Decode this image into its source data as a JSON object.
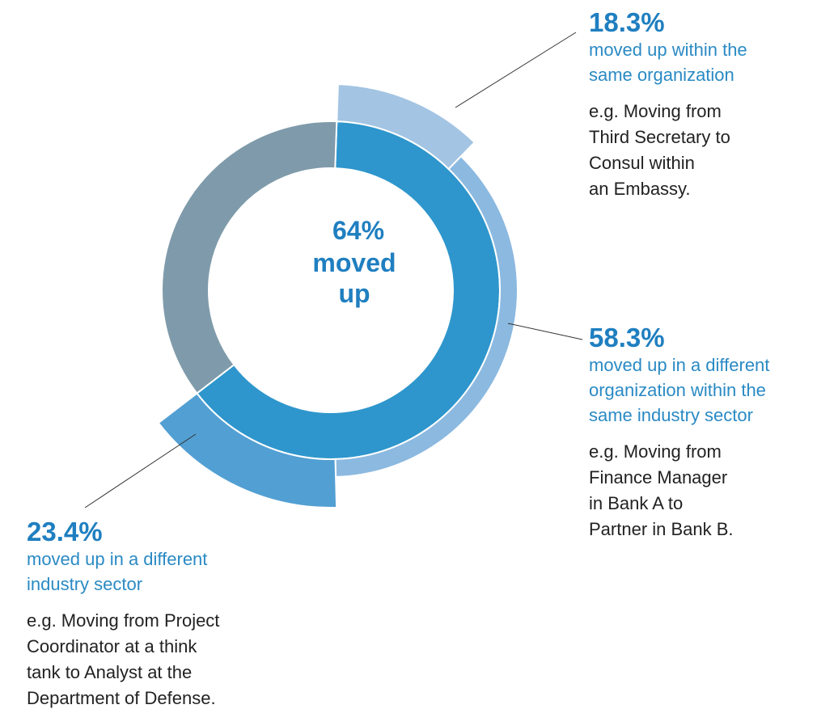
{
  "chart_data": {
    "type": "nested-donut",
    "inner": {
      "values": [
        64,
        36
      ],
      "value_labels": [
        "64%",
        null
      ],
      "colors": [
        "#2e96cc",
        "#7f9bab"
      ],
      "center_label": [
        "moved",
        "up"
      ]
    },
    "outer": {
      "values": [
        18.3,
        58.3,
        23.4
      ],
      "value_labels": [
        "18.3%",
        "58.3%",
        "23.4%"
      ],
      "colors": [
        "#a3c4e3",
        "#8cb9e0",
        "#529fd3"
      ],
      "descriptions": [
        [
          "moved up within the",
          "same organization"
        ],
        [
          "moved up in a different",
          "organization within the",
          "same industry sector"
        ],
        [
          "moved up in a different",
          "industry sector"
        ]
      ],
      "examples": [
        [
          "e.g. Moving from",
          "Third Secretary to",
          "Consul within",
          "an Embassy."
        ],
        [
          "e.g. Moving from",
          "Finance Manager",
          "in Bank A to",
          "Partner in Bank B."
        ],
        [
          "e.g. Moving from Project",
          "Coordinator at a think",
          "tank to Analyst at the",
          "Department of Defense."
        ]
      ]
    }
  }
}
